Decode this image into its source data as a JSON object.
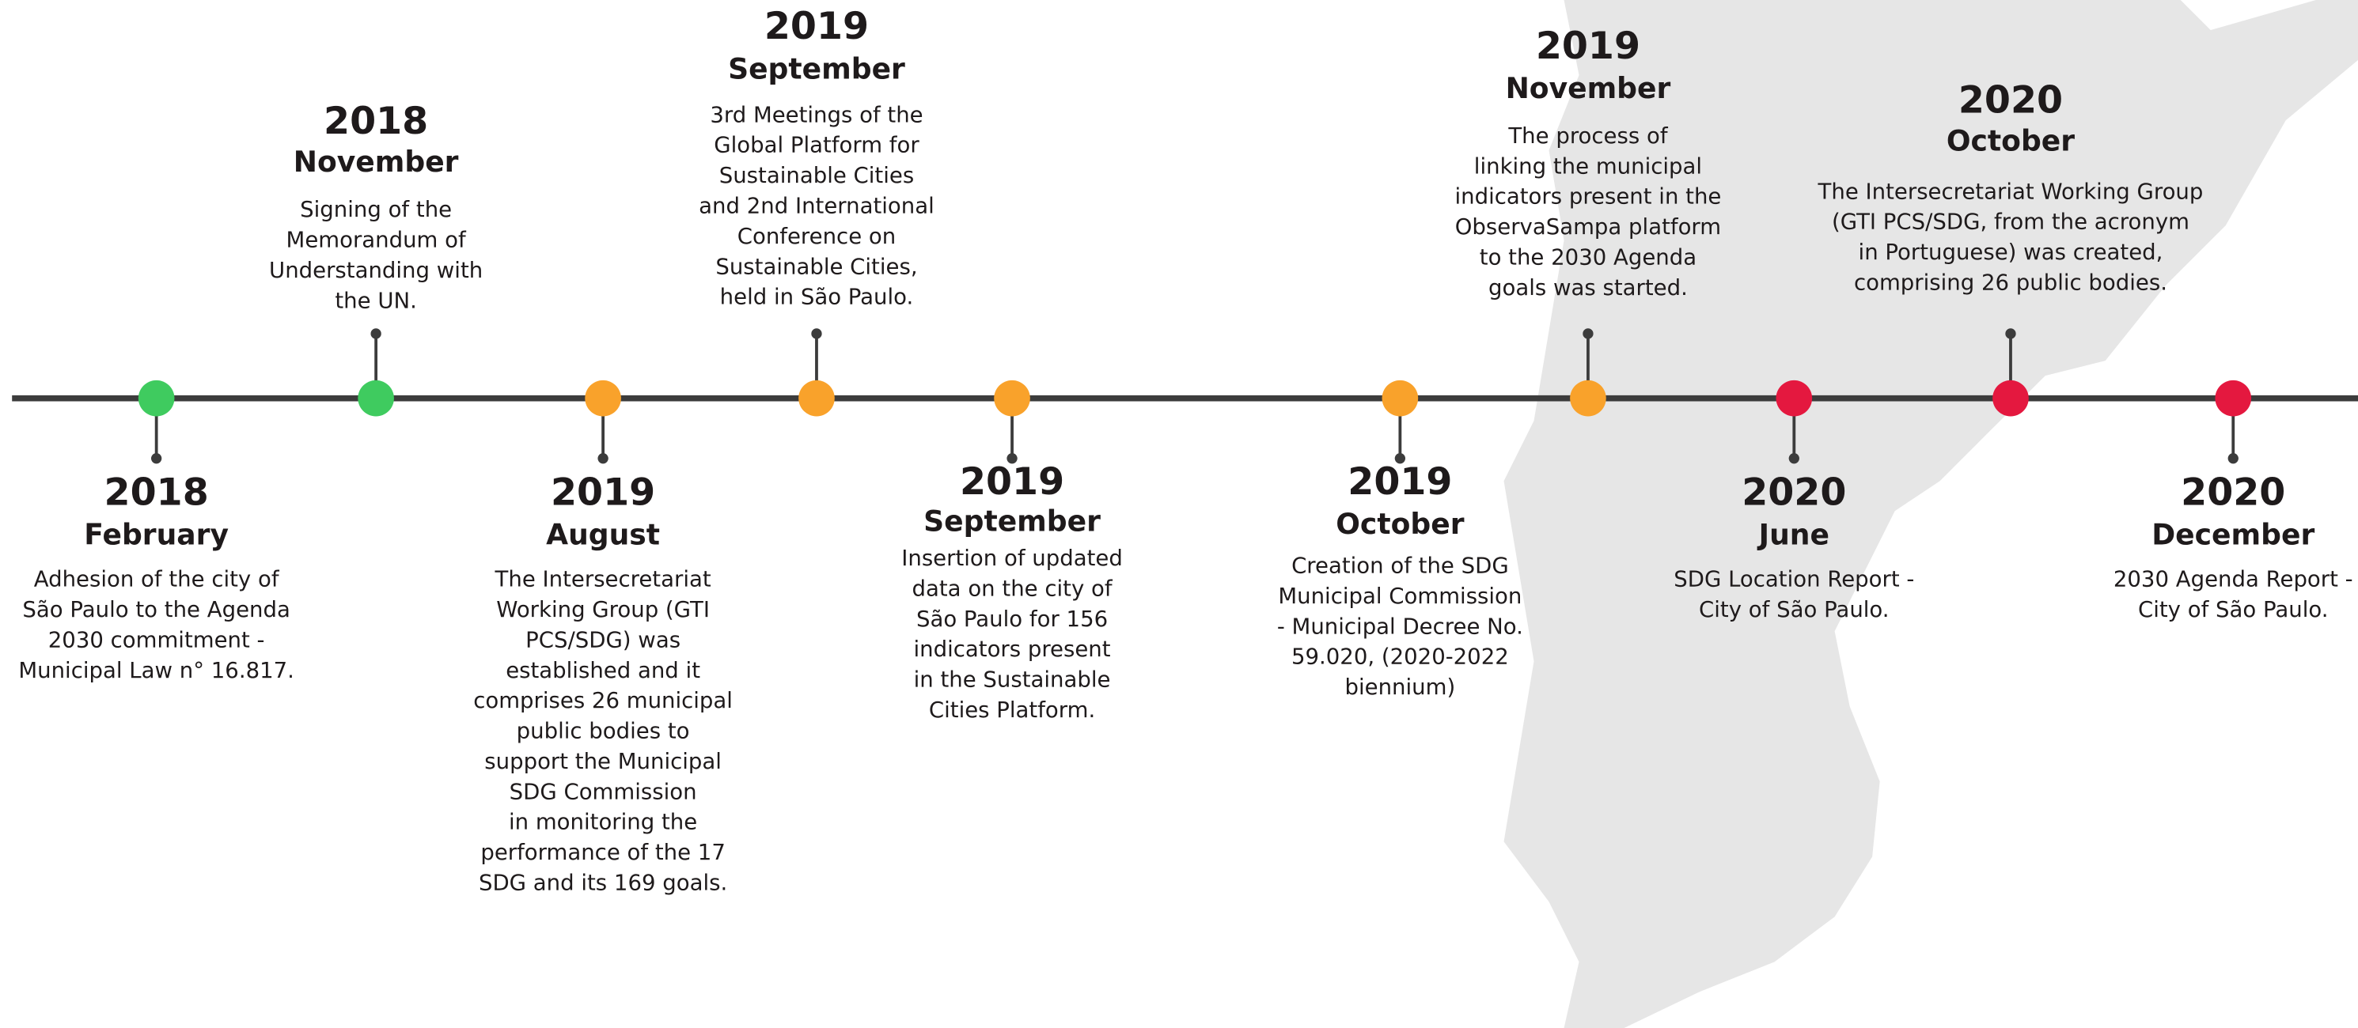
{
  "events": [
    {
      "year": "2018",
      "month": "February",
      "color": "#3fcb5f",
      "lines": [
        "Adhesion of the city of",
        "São Paulo to the Agenda",
        "2030 commitment -",
        "Municipal Law n° 16.817."
      ]
    },
    {
      "year": "2018",
      "month": "November",
      "color": "#3fcb5f",
      "lines": [
        "Signing of the",
        "Memorandum of",
        "Understanding with",
        "the UN."
      ]
    },
    {
      "year": "2019",
      "month": "August",
      "color": "#f9a22b",
      "lines": [
        "The Intersecretariat",
        "Working Group (GTI",
        "PCS/SDG) was",
        "established and it",
        "comprises 26 municipal",
        "public bodies to",
        "support the Municipal",
        "SDG Commission",
        "in monitoring the",
        "performance of the 17",
        "SDG and its 169 goals."
      ]
    },
    {
      "year": "2019",
      "month": "September",
      "color": "#f9a22b",
      "lines": [
        "3rd Meetings of the",
        "Global Platform for",
        "Sustainable Cities",
        "and 2nd International",
        "Conference on",
        "Sustainable Cities,",
        "held in São Paulo."
      ]
    },
    {
      "year": "2019",
      "month": "September",
      "color": "#f9a22b",
      "lines": [
        "Insertion of updated",
        "data on the city of",
        "São Paulo for 156",
        "indicators present",
        "in the Sustainable",
        "Cities Platform."
      ]
    },
    {
      "year": "2019",
      "month": "October",
      "color": "#f9a22b",
      "lines": [
        "Creation of the SDG",
        "Municipal Commission",
        "- Municipal Decree No.",
        "59.020, (2020-2022",
        "biennium)"
      ]
    },
    {
      "year": "2019",
      "month": "November",
      "color": "#f9a22b",
      "lines": [
        "The process of",
        "linking the municipal",
        "indicators present in the",
        "ObservaSampa platform",
        "to the 2030 Agenda",
        "goals was started."
      ]
    },
    {
      "year": "2020",
      "month": "June",
      "color": "#e4183f",
      "lines": [
        "SDG Location Report -",
        "City of São Paulo."
      ]
    },
    {
      "year": "2020",
      "month": "October",
      "color": "#e4183f",
      "lines": [
        "The Intersecretariat Working Group",
        "(GTI PCS/SDG, from the acronym",
        "in Portuguese) was created,",
        "comprising 26 public bodies."
      ]
    },
    {
      "year": "2020",
      "month": "December",
      "color": "#e4183f",
      "lines": [
        "2030 Agenda Report -",
        "City of São Paulo."
      ]
    }
  ]
}
